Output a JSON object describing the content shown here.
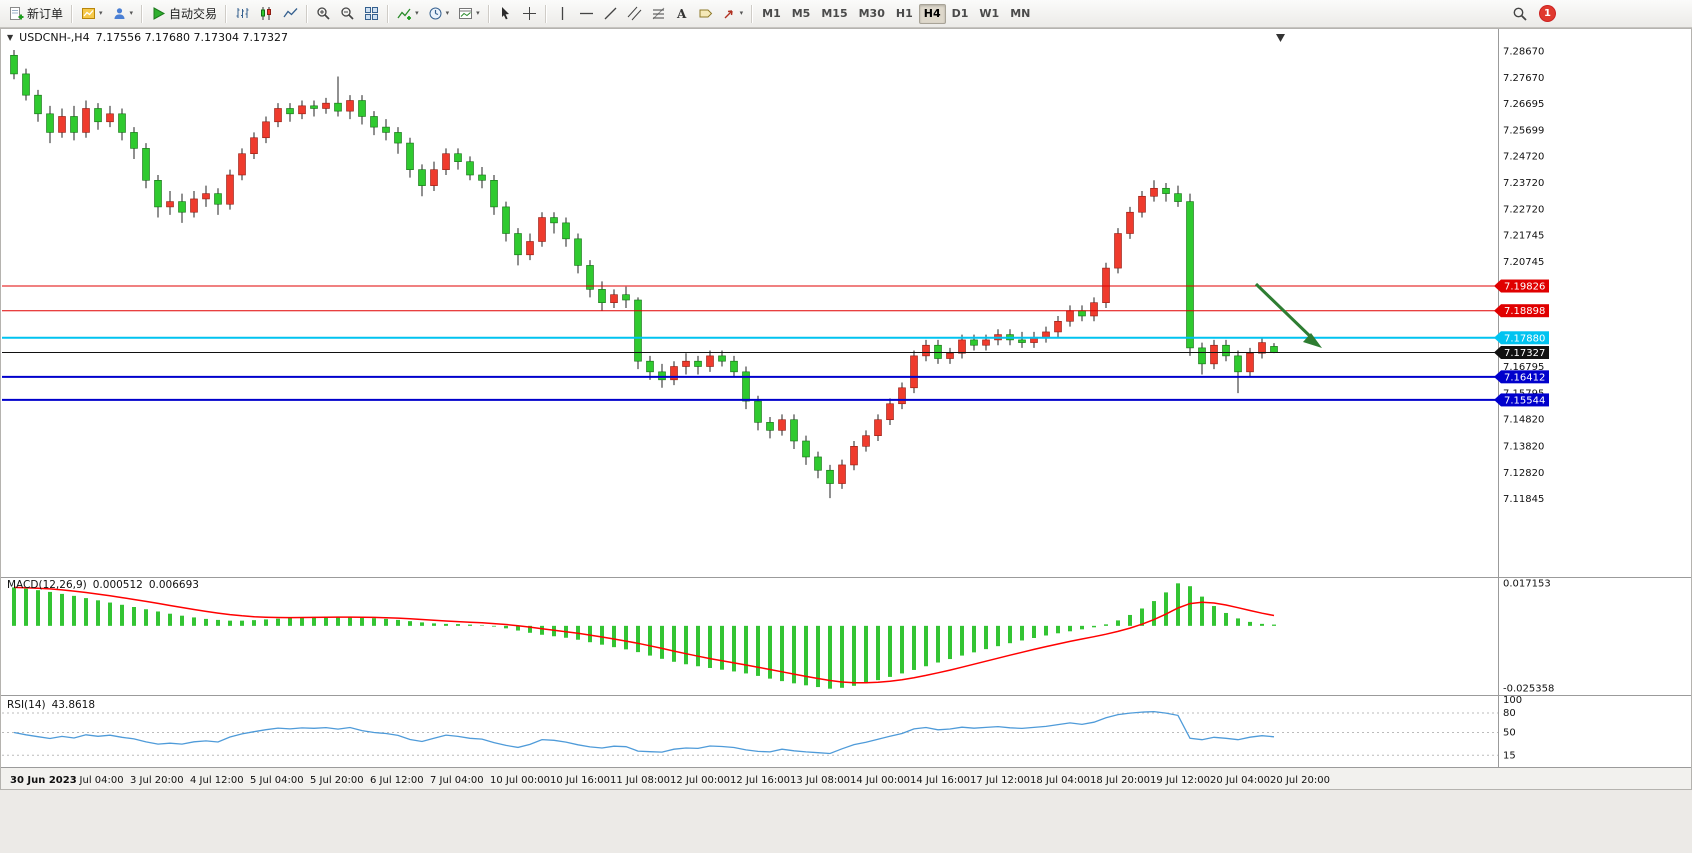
{
  "toolbar": {
    "new_order": "新订单",
    "autotrade": "自动交易",
    "timeframes": [
      "M1",
      "M5",
      "M15",
      "M30",
      "H1",
      "H4",
      "D1",
      "W1",
      "MN"
    ],
    "active_timeframe": "H4",
    "notification_badge": "1"
  },
  "chart": {
    "symbol_period": "USDCNH-,H4",
    "ohlc": "7.17556 7.17680 7.17304 7.17327"
  },
  "chart_data": {
    "type": "candlestick",
    "symbol": "USDCNH-",
    "timeframe": "H4",
    "color_convention": "red = up, green = down",
    "current_bar": {
      "open": 7.17556,
      "high": 7.1768,
      "low": 7.17304,
      "close": 7.17327
    },
    "price_axis": {
      "range": [
        7.09,
        7.293
      ],
      "ticks": [
        "7.28670",
        "7.27670",
        "7.26695",
        "7.25699",
        "7.24720",
        "7.23720",
        "7.22720",
        "7.21745",
        "7.20745",
        "7.16795",
        "7.15795",
        "7.14820",
        "7.13820",
        "7.12820",
        "7.11845"
      ]
    },
    "horizontal_lines": [
      {
        "price": 7.19826,
        "label": "7.19826",
        "color": "#e00000",
        "width": 1
      },
      {
        "price": 7.18898,
        "label": "7.18898",
        "color": "#e00000",
        "width": 1
      },
      {
        "price": 7.1788,
        "label": "7.17880",
        "color": "#00c3f0",
        "width": 2
      },
      {
        "price": 7.17327,
        "label": "7.17327",
        "color": "#111111",
        "width": 1
      },
      {
        "price": 7.16412,
        "label": "7.16412",
        "color": "#0000cc",
        "width": 2
      },
      {
        "price": 7.15544,
        "label": "7.15544",
        "color": "#0000cc",
        "width": 2
      }
    ],
    "candles": [
      [
        7.285,
        7.287,
        7.276,
        7.278
      ],
      [
        7.278,
        7.28,
        7.268,
        7.27
      ],
      [
        7.27,
        7.272,
        7.26,
        7.263
      ],
      [
        7.263,
        7.266,
        7.252,
        7.256
      ],
      [
        7.256,
        7.265,
        7.254,
        7.262
      ],
      [
        7.262,
        7.266,
        7.253,
        7.256
      ],
      [
        7.256,
        7.268,
        7.254,
        7.265
      ],
      [
        7.265,
        7.267,
        7.257,
        7.26
      ],
      [
        7.26,
        7.266,
        7.258,
        7.263
      ],
      [
        7.263,
        7.265,
        7.253,
        7.256
      ],
      [
        7.256,
        7.258,
        7.246,
        7.25
      ],
      [
        7.25,
        7.252,
        7.235,
        7.238
      ],
      [
        7.238,
        7.24,
        7.224,
        7.228
      ],
      [
        7.228,
        7.234,
        7.225,
        7.23
      ],
      [
        7.23,
        7.233,
        7.222,
        7.226
      ],
      [
        7.226,
        7.234,
        7.224,
        7.231
      ],
      [
        7.231,
        7.236,
        7.228,
        7.233
      ],
      [
        7.233,
        7.235,
        7.225,
        7.229
      ],
      [
        7.229,
        7.242,
        7.227,
        7.24
      ],
      [
        7.24,
        7.25,
        7.238,
        7.248
      ],
      [
        7.248,
        7.256,
        7.246,
        7.254
      ],
      [
        7.254,
        7.262,
        7.252,
        7.26
      ],
      [
        7.26,
        7.267,
        7.258,
        7.265
      ],
      [
        7.265,
        7.267,
        7.26,
        7.263
      ],
      [
        7.263,
        7.268,
        7.261,
        7.266
      ],
      [
        7.266,
        7.268,
        7.262,
        7.265
      ],
      [
        7.265,
        7.269,
        7.263,
        7.267
      ],
      [
        7.267,
        7.277,
        7.262,
        7.264
      ],
      [
        7.264,
        7.27,
        7.261,
        7.268
      ],
      [
        7.268,
        7.27,
        7.259,
        7.262
      ],
      [
        7.262,
        7.264,
        7.255,
        7.258
      ],
      [
        7.258,
        7.261,
        7.253,
        7.256
      ],
      [
        7.256,
        7.258,
        7.248,
        7.252
      ],
      [
        7.252,
        7.254,
        7.239,
        7.242
      ],
      [
        7.242,
        7.244,
        7.232,
        7.236
      ],
      [
        7.236,
        7.245,
        7.234,
        7.242
      ],
      [
        7.242,
        7.25,
        7.24,
        7.248
      ],
      [
        7.248,
        7.25,
        7.242,
        7.245
      ],
      [
        7.245,
        7.247,
        7.238,
        7.24
      ],
      [
        7.24,
        7.243,
        7.235,
        7.238
      ],
      [
        7.238,
        7.24,
        7.225,
        7.228
      ],
      [
        7.228,
        7.23,
        7.215,
        7.218
      ],
      [
        7.218,
        7.22,
        7.206,
        7.21
      ],
      [
        7.21,
        7.218,
        7.208,
        7.215
      ],
      [
        7.215,
        7.226,
        7.213,
        7.224
      ],
      [
        7.224,
        7.226,
        7.218,
        7.222
      ],
      [
        7.222,
        7.224,
        7.213,
        7.216
      ],
      [
        7.216,
        7.218,
        7.203,
        7.206
      ],
      [
        7.206,
        7.208,
        7.194,
        7.197
      ],
      [
        7.197,
        7.2,
        7.189,
        7.192
      ],
      [
        7.192,
        7.197,
        7.19,
        7.195
      ],
      [
        7.195,
        7.198,
        7.19,
        7.193
      ],
      [
        7.193,
        7.194,
        7.167,
        7.17
      ],
      [
        7.17,
        7.172,
        7.163,
        7.166
      ],
      [
        7.166,
        7.169,
        7.16,
        7.163
      ],
      [
        7.163,
        7.17,
        7.161,
        7.168
      ],
      [
        7.168,
        7.173,
        7.165,
        7.17
      ],
      [
        7.17,
        7.172,
        7.165,
        7.168
      ],
      [
        7.168,
        7.174,
        7.166,
        7.172
      ],
      [
        7.172,
        7.174,
        7.168,
        7.17
      ],
      [
        7.17,
        7.172,
        7.164,
        7.166
      ],
      [
        7.166,
        7.168,
        7.152,
        7.155
      ],
      [
        7.155,
        7.157,
        7.144,
        7.147
      ],
      [
        7.147,
        7.149,
        7.141,
        7.144
      ],
      [
        7.144,
        7.15,
        7.142,
        7.148
      ],
      [
        7.148,
        7.15,
        7.137,
        7.14
      ],
      [
        7.14,
        7.142,
        7.131,
        7.134
      ],
      [
        7.134,
        7.136,
        7.126,
        7.129
      ],
      [
        7.129,
        7.131,
        7.1185,
        7.124
      ],
      [
        7.124,
        7.133,
        7.122,
        7.131
      ],
      [
        7.131,
        7.14,
        7.129,
        7.138
      ],
      [
        7.138,
        7.144,
        7.136,
        7.142
      ],
      [
        7.142,
        7.15,
        7.14,
        7.148
      ],
      [
        7.148,
        7.156,
        7.146,
        7.154
      ],
      [
        7.154,
        7.162,
        7.152,
        7.16
      ],
      [
        7.16,
        7.174,
        7.158,
        7.172
      ],
      [
        7.172,
        7.178,
        7.17,
        7.176
      ],
      [
        7.176,
        7.178,
        7.169,
        7.171
      ],
      [
        7.171,
        7.175,
        7.169,
        7.173
      ],
      [
        7.173,
        7.18,
        7.171,
        7.178
      ],
      [
        7.178,
        7.18,
        7.174,
        7.176
      ],
      [
        7.176,
        7.18,
        7.174,
        7.178
      ],
      [
        7.178,
        7.182,
        7.176,
        7.18
      ],
      [
        7.18,
        7.182,
        7.176,
        7.178
      ],
      [
        7.178,
        7.181,
        7.175,
        7.177
      ],
      [
        7.177,
        7.181,
        7.175,
        7.179
      ],
      [
        7.179,
        7.183,
        7.177,
        7.181
      ],
      [
        7.181,
        7.187,
        7.179,
        7.185
      ],
      [
        7.185,
        7.191,
        7.183,
        7.189
      ],
      [
        7.189,
        7.191,
        7.185,
        7.187
      ],
      [
        7.187,
        7.194,
        7.185,
        7.192
      ],
      [
        7.192,
        7.207,
        7.19,
        7.205
      ],
      [
        7.205,
        7.22,
        7.203,
        7.218
      ],
      [
        7.218,
        7.228,
        7.216,
        7.226
      ],
      [
        7.226,
        7.234,
        7.224,
        7.232
      ],
      [
        7.232,
        7.238,
        7.23,
        7.235
      ],
      [
        7.235,
        7.237,
        7.23,
        7.233
      ],
      [
        7.233,
        7.236,
        7.228,
        7.23
      ],
      [
        7.23,
        7.233,
        7.172,
        7.175
      ],
      [
        7.175,
        7.177,
        7.165,
        7.169
      ],
      [
        7.169,
        7.178,
        7.167,
        7.176
      ],
      [
        7.176,
        7.178,
        7.17,
        7.172
      ],
      [
        7.172,
        7.174,
        7.158,
        7.166
      ],
      [
        7.166,
        7.175,
        7.164,
        7.173
      ],
      [
        7.173,
        7.179,
        7.171,
        7.177
      ],
      [
        7.17556,
        7.1768,
        7.17304,
        7.17327
      ]
    ],
    "time_axis": [
      "30 Jun 2023",
      "3 Jul 04:00",
      "3 Jul 20:00",
      "4 Jul 12:00",
      "5 Jul 04:00",
      "5 Jul 20:00",
      "6 Jul 12:00",
      "7 Jul 04:00",
      "10 Jul 00:00",
      "10 Jul 16:00",
      "11 Jul 08:00",
      "12 Jul 00:00",
      "12 Jul 16:00",
      "13 Jul 08:00",
      "14 Jul 00:00",
      "14 Jul 16:00",
      "17 Jul 12:00",
      "18 Jul 04:00",
      "18 Jul 20:00",
      "19 Jul 12:00",
      "20 Jul 04:00",
      "20 Jul 20:00"
    ],
    "macd": {
      "label": "MACD(12,26,9)",
      "main_value": "0.000512",
      "signal_value": "0.006693",
      "axis_max": "0.017153",
      "axis_min": "-0.025358",
      "range": [
        -0.0275,
        0.0185
      ],
      "signal_period": 9,
      "histogram": [
        0.0155,
        0.015,
        0.0144,
        0.0137,
        0.0129,
        0.0121,
        0.0112,
        0.0103,
        0.0094,
        0.0085,
        0.0076,
        0.0067,
        0.0058,
        0.0049,
        0.0041,
        0.0034,
        0.0028,
        0.0024,
        0.0021,
        0.0021,
        0.0023,
        0.0026,
        0.0029,
        0.0032,
        0.0035,
        0.0036,
        0.0037,
        0.0037,
        0.0036,
        0.0034,
        0.0031,
        0.0028,
        0.0024,
        0.0019,
        0.0014,
        0.001,
        0.0008,
        0.0007,
        0.0005,
        0.0002,
        -0.0003,
        -0.001,
        -0.0019,
        -0.0028,
        -0.0036,
        -0.0042,
        -0.0048,
        -0.0056,
        -0.0066,
        -0.0076,
        -0.0086,
        -0.0095,
        -0.0106,
        -0.012,
        -0.0133,
        -0.0145,
        -0.0155,
        -0.0163,
        -0.017,
        -0.0177,
        -0.0184,
        -0.0192,
        -0.0202,
        -0.0213,
        -0.0223,
        -0.0232,
        -0.024,
        -0.0247,
        -0.025358,
        -0.025,
        -0.0242,
        -0.0231,
        -0.0219,
        -0.0206,
        -0.0192,
        -0.0178,
        -0.0163,
        -0.0148,
        -0.0134,
        -0.012,
        -0.0107,
        -0.0094,
        -0.0082,
        -0.007,
        -0.0059,
        -0.0049,
        -0.0039,
        -0.003,
        -0.0022,
        -0.0014,
        -0.0006,
        0.0006,
        0.0022,
        0.0044,
        0.007,
        0.01,
        0.0135,
        0.017153,
        0.016,
        0.0118,
        0.008,
        0.0052,
        0.003,
        0.0016,
        0.0008,
        0.000512
      ]
    },
    "rsi": {
      "label": "RSI(14)",
      "value": "43.8618",
      "period": 14,
      "range": [
        0,
        100
      ],
      "levels": [
        80,
        50,
        15
      ],
      "axis_ticks": [
        100,
        80,
        50,
        15
      ]
    },
    "annotation_arrow": {
      "color": "#2e7d32",
      "direction": "down-right",
      "points_to_price": 7.19826
    },
    "colors": {
      "up": "#ef3b2d",
      "up_stroke": "#8d1c12",
      "down": "#2fca2f",
      "down_stroke": "#156c15",
      "wick": "#222222",
      "macd_hist": "#33c433",
      "macd_signal": "#ff0000",
      "rsi_line": "#4f9bd9"
    }
  }
}
